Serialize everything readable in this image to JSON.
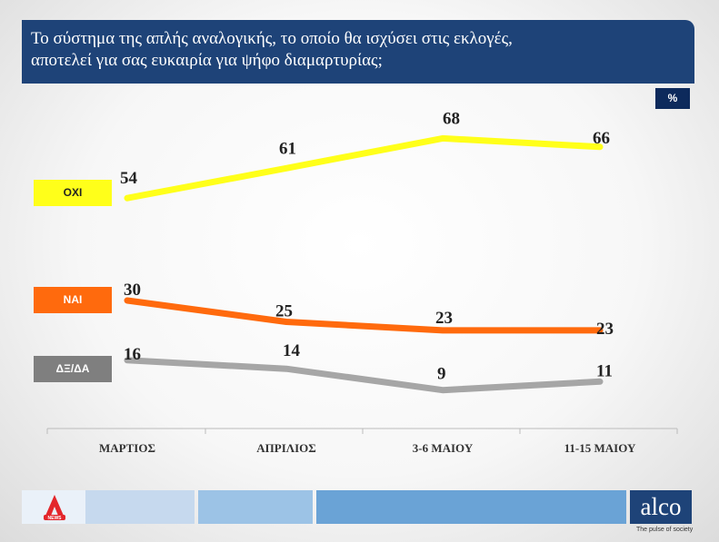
{
  "title": {
    "line1": "Το σύστημα της απλής αναλογικής, το οποίο θα ισχύσει στις εκλογές,",
    "line2": "αποτελεί για σας ευκαιρία για ψήφο διαμαρτυρίας;"
  },
  "unit": "%",
  "chart_data": {
    "type": "line",
    "categories": [
      "ΜΑΡΤΙΟΣ",
      "ΑΠΡΙΛΙΟΣ",
      "3-6 ΜΑΙΟΥ",
      "11-15 ΜΑΙΟΥ"
    ],
    "series": [
      {
        "name": "ΟΧΙ",
        "values": [
          54,
          61,
          68,
          66
        ],
        "color": "#ffff1a"
      },
      {
        "name": "ΝΑΙ",
        "values": [
          30,
          25,
          23,
          23
        ],
        "color": "#ff6a0d"
      },
      {
        "name": "ΔΞ/ΔΑ",
        "values": [
          16,
          14,
          9,
          11
        ],
        "color": "#a6a6a6"
      }
    ],
    "title": "Το σύστημα της απλής αναλογικής, το οποίο θα ισχύσει στις εκλογές, αποτελεί για σας ευκαιρία για ψήφο διαμαρτυρίας;",
    "xlabel": "",
    "ylabel": "",
    "ylim": [
      0,
      75
    ],
    "grid": false,
    "legend": "left"
  },
  "footer": {
    "brand": "alco",
    "tagline": "The pulse of society",
    "news_logo_text": "NEWS"
  }
}
